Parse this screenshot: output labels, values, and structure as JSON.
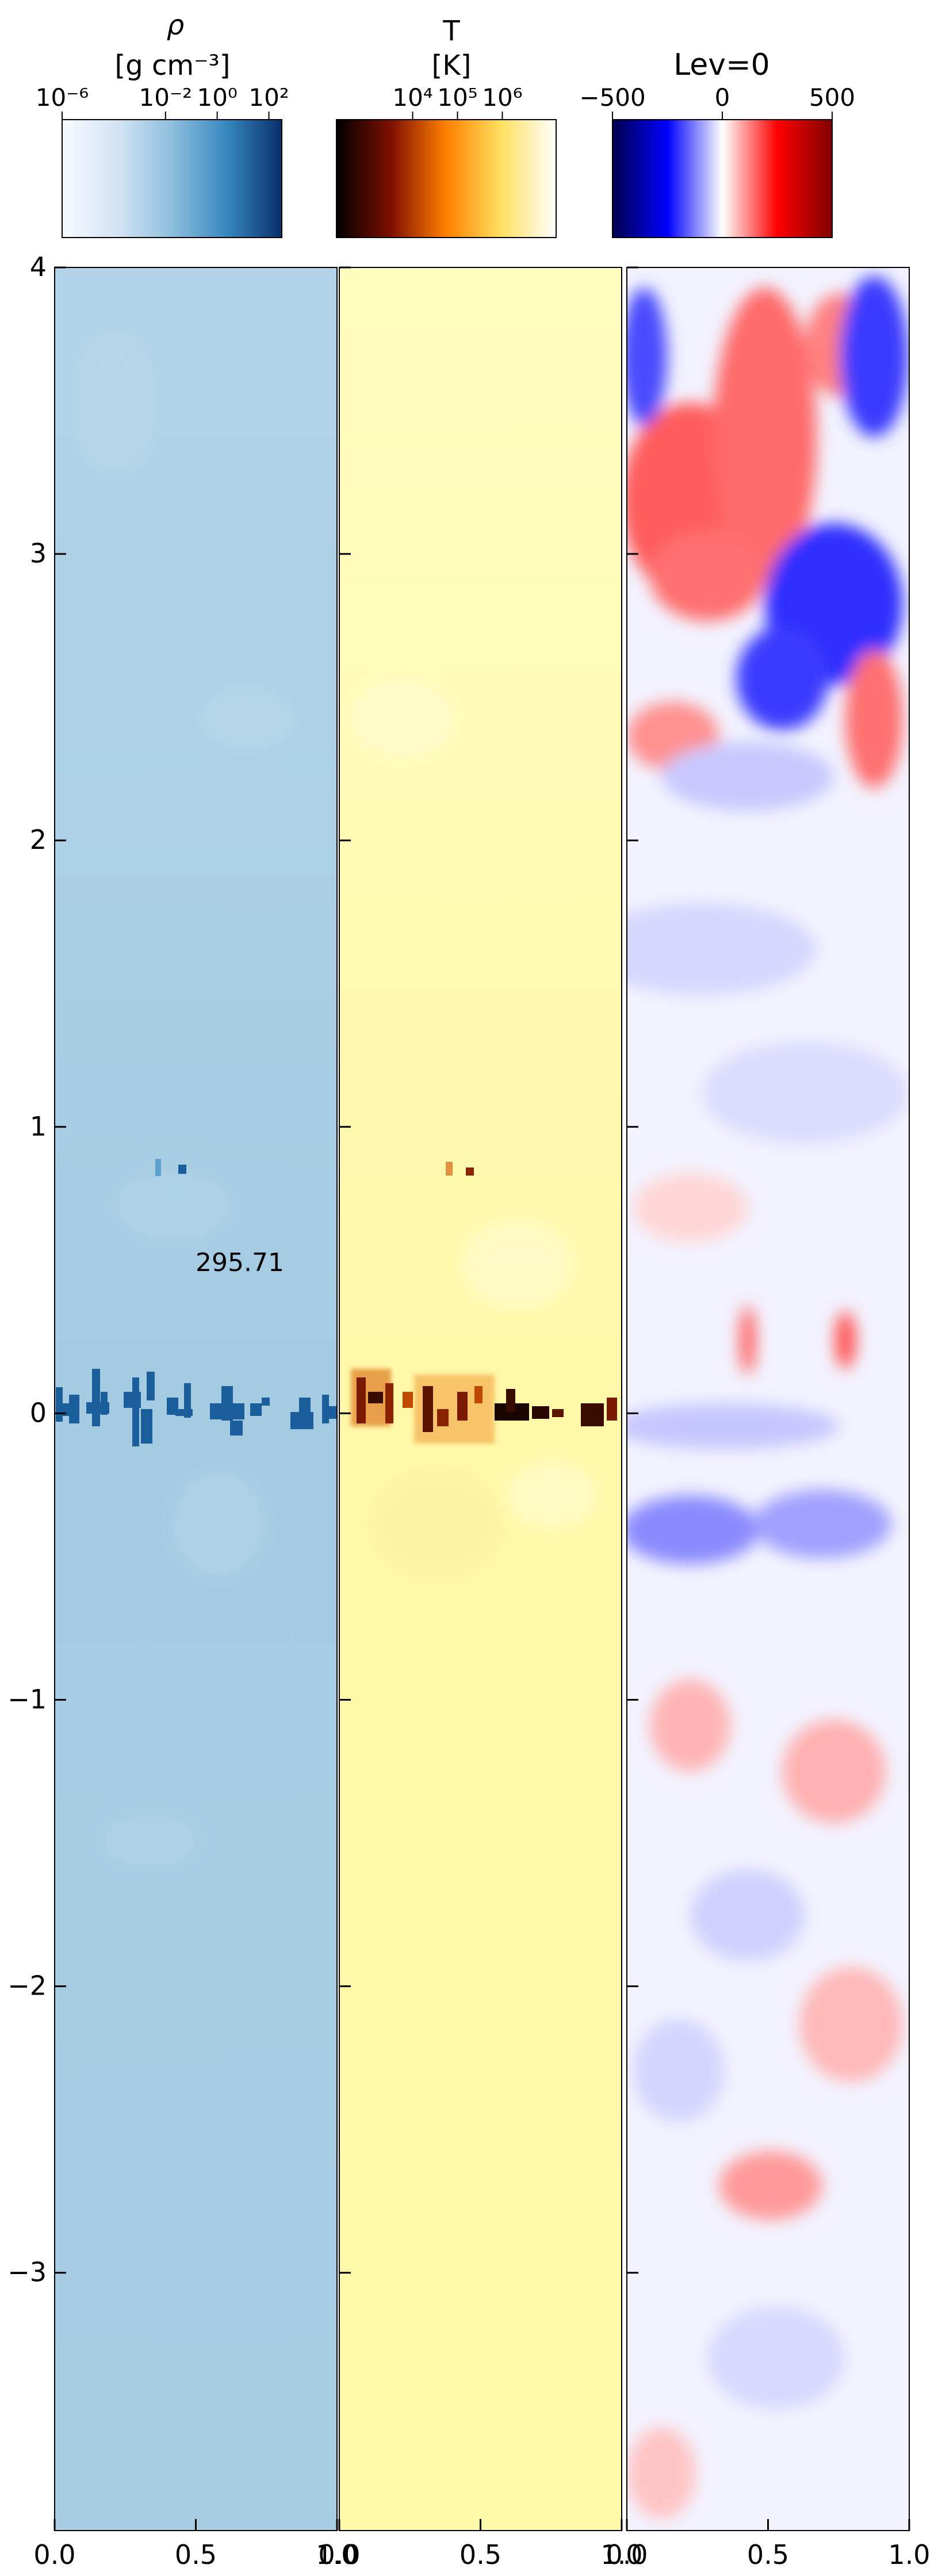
{
  "chart_data": {
    "type": "heatmap",
    "annotation": "295.71",
    "x_ticks": [
      0.0,
      0.5,
      1.0
    ],
    "x_tick_labels": [
      "0.0",
      "0.5",
      "1.0"
    ],
    "y_ticks": [
      -3,
      -2,
      -1,
      0,
      1,
      2,
      3,
      4
    ],
    "y_tick_labels": [
      "−3",
      "−2",
      "−1",
      "0",
      "1",
      "2",
      "3",
      "4"
    ],
    "xlim": [
      0,
      1
    ],
    "ylim": [
      -3.9,
      4
    ],
    "panels": [
      {
        "name": "density",
        "colorbar_title": "ρ",
        "colorbar_unit": "[g cm⁻³]",
        "colormap": "Blues",
        "colorbar_ticks": [
          {
            "label": "10⁻⁶",
            "value": -6
          },
          {
            "label": "10⁻²",
            "value": -2
          },
          {
            "label": "10⁰",
            "value": 0
          },
          {
            "label": "10²",
            "value": 2
          }
        ],
        "crange": [
          -6,
          2.5
        ],
        "background_color": "#a4cbe2",
        "dense_color": "#1a5f9c"
      },
      {
        "name": "temperature",
        "colorbar_title": "T",
        "colorbar_unit": "[K]",
        "colormap": "afmhot",
        "colorbar_ticks": [
          {
            "label": "10⁴",
            "value": 4
          },
          {
            "label": "10⁵",
            "value": 5
          },
          {
            "label": "10⁶",
            "value": 6
          }
        ],
        "crange": [
          2.3,
          7.2
        ],
        "background_color": "#fff8a8",
        "dense_color": "#3a0c00"
      },
      {
        "name": "velocity",
        "colorbar_title": "Lev=0",
        "colorbar_unit": "",
        "colormap": "seismic",
        "colorbar_ticks": [
          {
            "label": "−500",
            "value": -500
          },
          {
            "label": "0",
            "value": 0
          },
          {
            "label": "500",
            "value": 500
          }
        ],
        "crange": [
          -500,
          500
        ],
        "background_color": "#f3f3ff"
      }
    ]
  }
}
